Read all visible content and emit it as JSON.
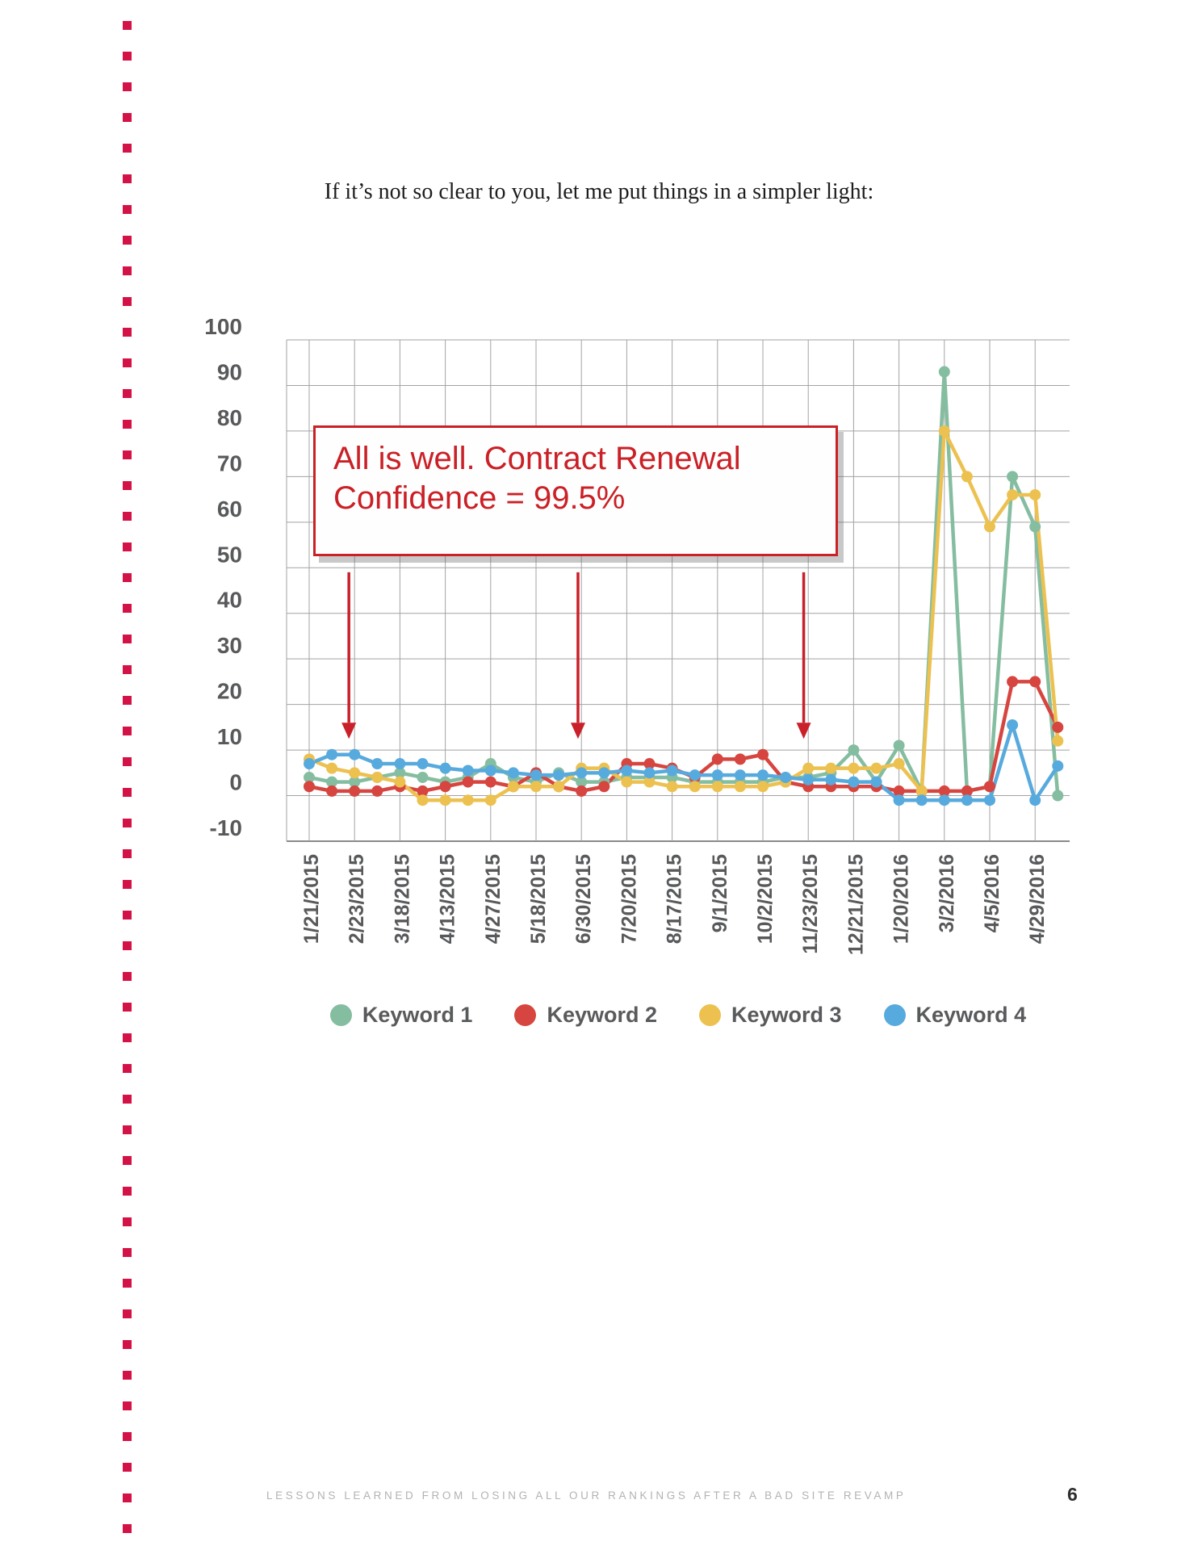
{
  "page": {
    "intro_text": "If it’s not so clear to you, let me put things in a simpler light:",
    "footer_text": "LESSONS LEARNED FROM LOSING ALL OUR RANKINGS AFTER A BAD SITE REVAMP",
    "page_number": "6",
    "margin_dot_color": "#d31245"
  },
  "annotation_box": {
    "line1": "All is well. Contract Renewal",
    "line2": "Confidence = 99.5%",
    "color": "#ca2026"
  },
  "chart_data": {
    "type": "line",
    "title": "",
    "xlabel": "",
    "ylabel": "",
    "x_labels": [
      "1/21/2015",
      "2/23/2015",
      "3/18/2015",
      "4/13/2015",
      "4/27/2015",
      "5/18/2015",
      "6/30/2015",
      "7/20/2015",
      "8/17/2015",
      "9/1/2015",
      "10/2/2015",
      "11/23/2015",
      "12/21/2015",
      "1/20/2016",
      "3/2/2016",
      "4/5/2016",
      "4/29/2016"
    ],
    "label_every_n_points": 2,
    "ylim": [
      -10,
      100
    ],
    "y_ticks": [
      100,
      90,
      80,
      70,
      60,
      50,
      40,
      30,
      20,
      10,
      0,
      -10
    ],
    "grid": true,
    "legend_position": "bottom",
    "x_label_rotation": -90,
    "series": [
      {
        "name": "Keyword 1",
        "color": "#85bda0",
        "values": [
          4,
          3,
          3,
          4,
          5,
          4,
          3,
          4,
          7,
          4,
          3,
          5,
          3,
          3,
          4,
          4,
          4,
          3,
          3,
          3,
          3,
          4,
          4,
          5,
          10,
          3,
          11,
          1,
          93,
          1,
          2,
          70,
          59,
          0
        ]
      },
      {
        "name": "Keyword 2",
        "color": "#d6453f",
        "values": [
          2,
          1,
          1,
          1,
          2,
          1,
          2,
          3,
          3,
          2,
          5,
          2,
          1,
          2,
          7,
          7,
          6,
          4,
          8,
          8,
          9,
          3,
          2,
          2,
          2,
          2,
          1,
          1,
          1,
          1,
          2,
          25,
          25,
          15
        ]
      },
      {
        "name": "Keyword 3",
        "color": "#ecc150",
        "values": [
          8,
          6,
          5,
          4,
          3,
          -1,
          -1,
          -1,
          -1,
          2,
          2,
          2,
          6,
          6,
          3,
          3,
          2,
          2,
          2,
          2,
          2,
          3,
          6,
          6,
          6,
          6,
          7,
          1,
          80,
          70,
          59,
          66,
          66,
          12
        ]
      },
      {
        "name": "Keyword 4",
        "color": "#57aadd",
        "values": [
          7,
          9,
          9,
          7,
          7,
          7,
          6,
          5.5,
          5.5,
          5,
          4.5,
          4.5,
          5,
          5,
          5.5,
          5,
          5.5,
          4.5,
          4.5,
          4.5,
          4.5,
          4,
          3.5,
          3.5,
          3,
          3,
          -1,
          -1,
          -1,
          -1,
          -1,
          15.5,
          -1,
          6.5
        ]
      }
    ],
    "arrows": {
      "color": "#c9202a",
      "x_indices": [
        1.75,
        11.85,
        21.8
      ],
      "y_from": 49,
      "y_to": 16
    }
  }
}
